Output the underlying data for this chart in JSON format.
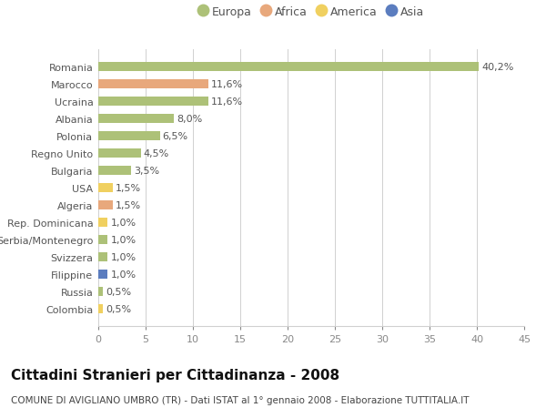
{
  "countries": [
    "Romania",
    "Marocco",
    "Ucraina",
    "Albania",
    "Polonia",
    "Regno Unito",
    "Bulgaria",
    "USA",
    "Algeria",
    "Rep. Dominicana",
    "Serbia/Montenegro",
    "Svizzera",
    "Filippine",
    "Russia",
    "Colombia"
  ],
  "values": [
    40.2,
    11.6,
    11.6,
    8.0,
    6.5,
    4.5,
    3.5,
    1.5,
    1.5,
    1.0,
    1.0,
    1.0,
    1.0,
    0.5,
    0.5
  ],
  "labels": [
    "40,2%",
    "11,6%",
    "11,6%",
    "8,0%",
    "6,5%",
    "4,5%",
    "3,5%",
    "1,5%",
    "1,5%",
    "1,0%",
    "1,0%",
    "1,0%",
    "1,0%",
    "0,5%",
    "0,5%"
  ],
  "continents": [
    "Europa",
    "Africa",
    "Europa",
    "Europa",
    "Europa",
    "Europa",
    "Europa",
    "America",
    "Africa",
    "America",
    "Europa",
    "Europa",
    "Asia",
    "Europa",
    "America"
  ],
  "continent_colors": {
    "Europa": "#adc178",
    "Africa": "#e8a87c",
    "America": "#f0d060",
    "Asia": "#5b7dbf"
  },
  "legend_order": [
    "Europa",
    "Africa",
    "America",
    "Asia"
  ],
  "title": "Cittadini Stranieri per Cittadinanza - 2008",
  "subtitle": "COMUNE DI AVIGLIANO UMBRO (TR) - Dati ISTAT al 1° gennaio 2008 - Elaborazione TUTTITALIA.IT",
  "xlim": [
    0,
    45
  ],
  "xticks": [
    0,
    5,
    10,
    15,
    20,
    25,
    30,
    35,
    40,
    45
  ],
  "background_color": "#ffffff",
  "grid_color": "#d0d0d0",
  "bar_height": 0.55,
  "label_fontsize": 8,
  "tick_fontsize": 8,
  "ytick_fontsize": 8,
  "legend_fontsize": 9,
  "title_fontsize": 11,
  "subtitle_fontsize": 7.5
}
